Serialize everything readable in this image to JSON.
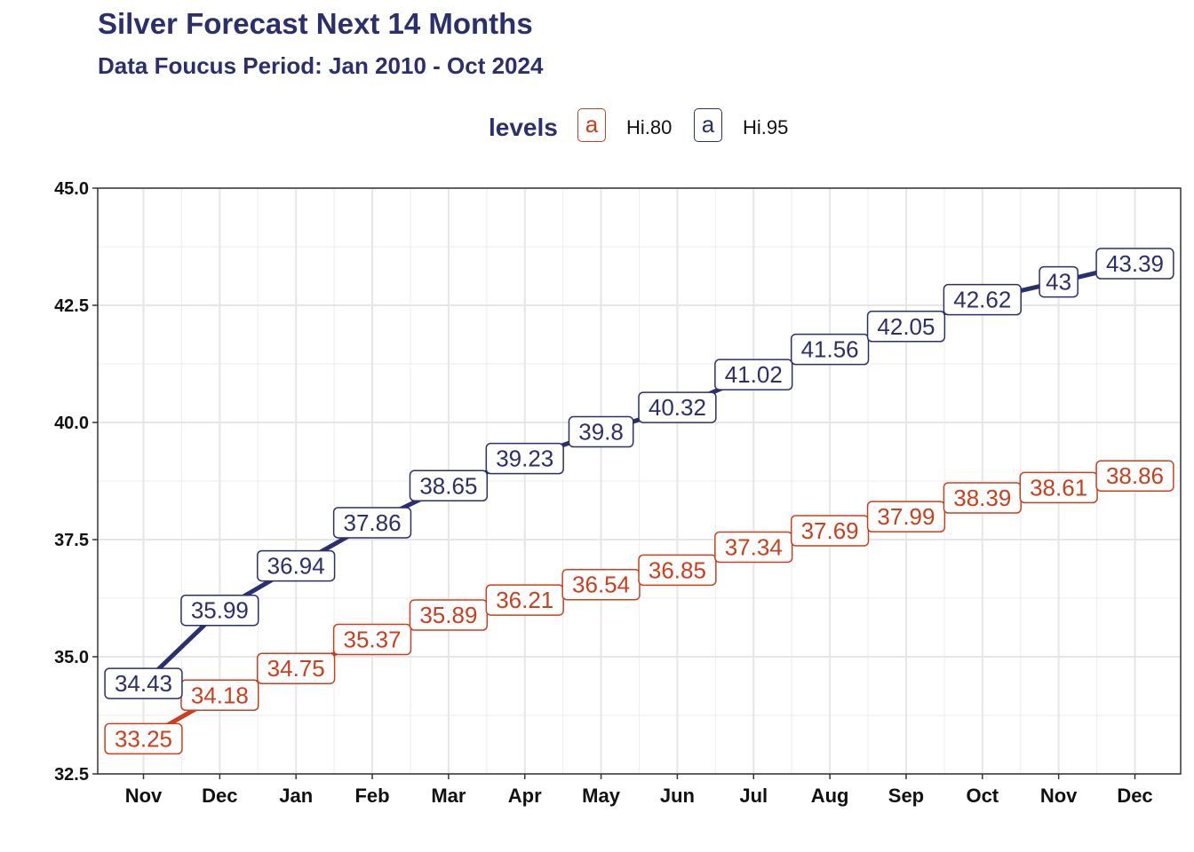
{
  "title": "Silver Forecast Next 14 Months",
  "subtitle": "Data Foucus Period: Jan 2010 - Oct 2024",
  "legend": {
    "title": "levels",
    "key_glyph": "a",
    "items": [
      {
        "label": "Hi.80",
        "color": "#c8401f"
      },
      {
        "label": "Hi.95",
        "color": "#2b2f6b"
      }
    ]
  },
  "colors": {
    "hi80": "#c8401f",
    "hi95": "#2b2f6b",
    "grid": "#e6e6e6",
    "panel_border": "#333333"
  },
  "chart_data": {
    "type": "line",
    "categories": [
      "Nov",
      "Dec",
      "Jan",
      "Feb",
      "Mar",
      "Apr",
      "May",
      "Jun",
      "Jul",
      "Aug",
      "Sep",
      "Oct",
      "Nov",
      "Dec"
    ],
    "series": [
      {
        "name": "Hi.80",
        "color": "#c8401f",
        "values": [
          33.25,
          34.18,
          34.75,
          35.37,
          35.89,
          36.21,
          36.54,
          36.85,
          37.34,
          37.69,
          37.99,
          38.39,
          38.61,
          38.86
        ]
      },
      {
        "name": "Hi.95",
        "color": "#2b2f6b",
        "values": [
          34.43,
          35.99,
          36.94,
          37.86,
          38.65,
          39.23,
          39.8,
          40.32,
          41.02,
          41.56,
          42.05,
          42.62,
          43,
          43.39
        ]
      }
    ],
    "x_dates": [
      "2024-11",
      "2024-12",
      "2025-01",
      "2025-02",
      "2025-03",
      "2025-04",
      "2025-05",
      "2025-06",
      "2025-07",
      "2025-08",
      "2025-09",
      "2025-10",
      "2025-11",
      "2025-12"
    ],
    "ylim": [
      32.5,
      45.0
    ],
    "yticks": [
      "32.5",
      "35.0",
      "37.5",
      "40.0",
      "42.5",
      "45.0"
    ],
    "grid": true,
    "legend_position": "top"
  }
}
